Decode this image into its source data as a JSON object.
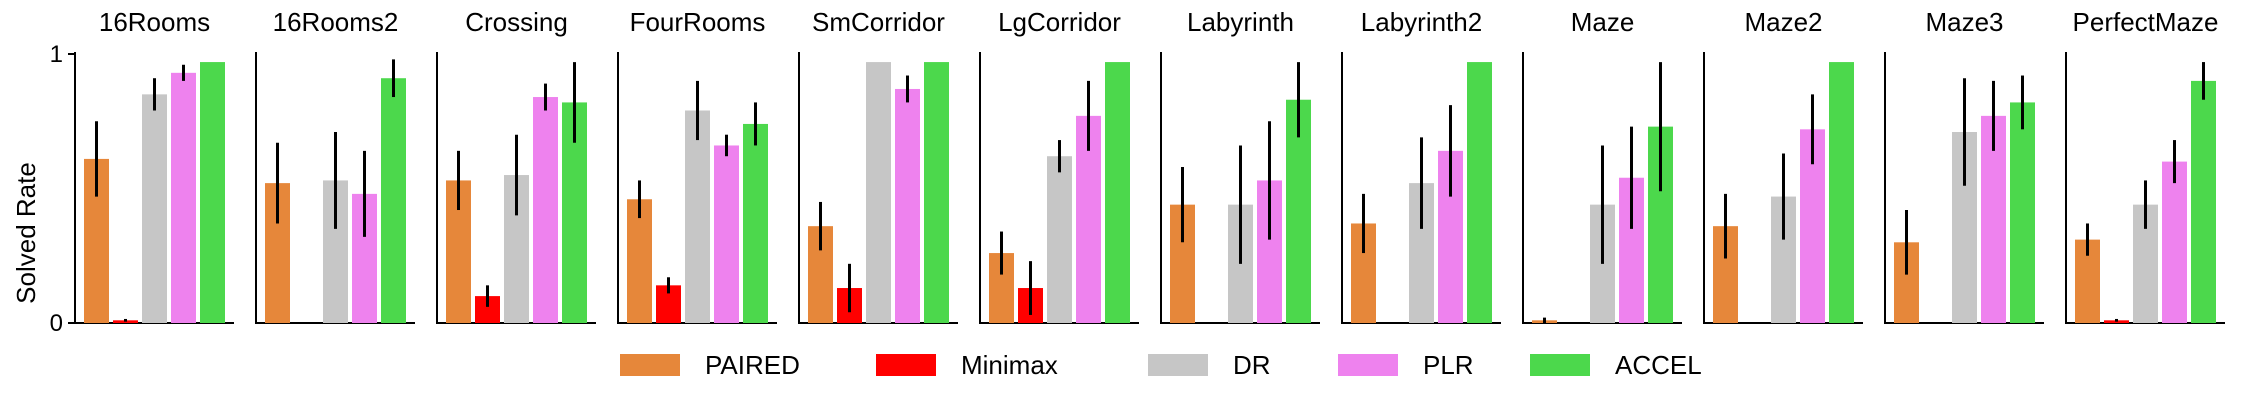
{
  "chart_data": {
    "type": "bar",
    "ylabel": "Solved Rate",
    "ylim": [
      0,
      1
    ],
    "yticks": [
      "0",
      "1"
    ],
    "grid": false,
    "legend_placement": "bottom-center",
    "series": [
      {
        "name": "PAIRED",
        "color": "#E6873A"
      },
      {
        "name": "Minimax",
        "color": "#FF0000"
      },
      {
        "name": "DR",
        "color": "#C6C6C6"
      },
      {
        "name": "PLR",
        "color": "#EE82EE"
      },
      {
        "name": "ACCEL",
        "color": "#4CD84C"
      }
    ],
    "panels": [
      {
        "title": "16Rooms",
        "values": [
          0.61,
          0.01,
          0.85,
          0.93,
          0.97
        ],
        "errors": [
          0.14,
          0.005,
          0.06,
          0.03,
          0.0
        ]
      },
      {
        "title": "16Rooms2",
        "values": [
          0.52,
          0.0,
          0.53,
          0.48,
          0.91
        ],
        "errors": [
          0.15,
          0.0,
          0.18,
          0.16,
          0.07
        ]
      },
      {
        "title": "Crossing",
        "values": [
          0.53,
          0.1,
          0.55,
          0.84,
          0.82
        ],
        "errors": [
          0.11,
          0.04,
          0.15,
          0.05,
          0.15
        ]
      },
      {
        "title": "FourRooms",
        "values": [
          0.46,
          0.14,
          0.79,
          0.66,
          0.74
        ],
        "errors": [
          0.07,
          0.03,
          0.11,
          0.04,
          0.08
        ]
      },
      {
        "title": "SmCorridor",
        "values": [
          0.36,
          0.13,
          0.97,
          0.87,
          0.97
        ],
        "errors": [
          0.09,
          0.09,
          0.0,
          0.05,
          0.0
        ]
      },
      {
        "title": "LgCorridor",
        "values": [
          0.26,
          0.13,
          0.62,
          0.77,
          0.97
        ],
        "errors": [
          0.08,
          0.1,
          0.06,
          0.13,
          0.0
        ]
      },
      {
        "title": "Labyrinth",
        "values": [
          0.44,
          0.0,
          0.44,
          0.53,
          0.83
        ],
        "errors": [
          0.14,
          0.0,
          0.22,
          0.22,
          0.14
        ]
      },
      {
        "title": "Labyrinth2",
        "values": [
          0.37,
          0.0,
          0.52,
          0.64,
          0.97
        ],
        "errors": [
          0.11,
          0.0,
          0.17,
          0.17,
          0.0
        ]
      },
      {
        "title": "Maze",
        "values": [
          0.01,
          0.0,
          0.44,
          0.54,
          0.73
        ],
        "errors": [
          0.01,
          0.0,
          0.22,
          0.19,
          0.24
        ]
      },
      {
        "title": "Maze2",
        "values": [
          0.36,
          0.0,
          0.47,
          0.72,
          0.97
        ],
        "errors": [
          0.12,
          0.0,
          0.16,
          0.13,
          0.0
        ]
      },
      {
        "title": "Maze3",
        "values": [
          0.3,
          0.0,
          0.71,
          0.77,
          0.82
        ],
        "errors": [
          0.12,
          0.0,
          0.2,
          0.13,
          0.1
        ]
      },
      {
        "title": "PerfectMaze",
        "values": [
          0.31,
          0.01,
          0.44,
          0.6,
          0.9
        ],
        "errors": [
          0.06,
          0.005,
          0.09,
          0.08,
          0.07
        ]
      }
    ]
  }
}
